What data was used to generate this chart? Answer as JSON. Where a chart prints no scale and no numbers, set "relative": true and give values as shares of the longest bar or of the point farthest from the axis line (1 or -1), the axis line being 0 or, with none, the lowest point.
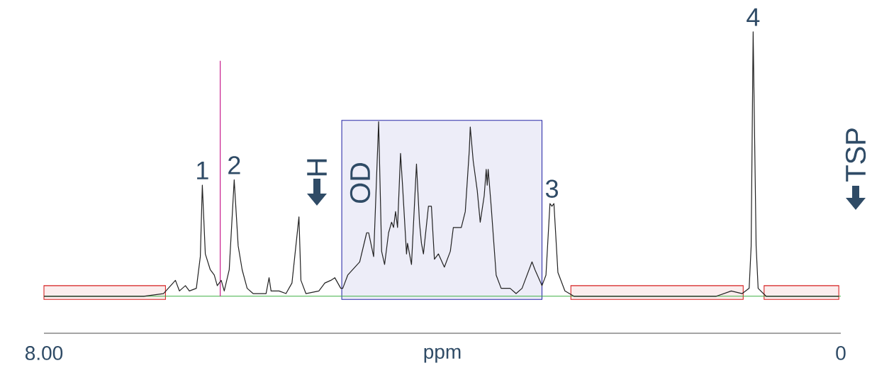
{
  "chart_data": {
    "type": "line",
    "relative": true,
    "xlabel": "ppm",
    "color": "#222222",
    "marker": "none",
    "xlim": [
      8,
      0
    ],
    "xticks": [
      {
        "value": 8,
        "label": "8.00"
      },
      0
    ],
    "x": [
      8.0,
      7.0,
      6.8,
      6.68,
      6.64,
      6.58,
      6.54,
      6.47,
      6.43,
      6.41,
      6.38,
      6.33,
      6.29,
      6.26,
      6.22,
      6.19,
      6.14,
      6.09,
      6.05,
      6.01,
      5.96,
      5.9,
      5.77,
      5.74,
      5.72,
      5.64,
      5.57,
      5.51,
      5.44,
      5.42,
      5.37,
      5.24,
      5.18,
      5.12,
      5.08,
      5.02,
      5.0,
      4.95,
      4.83,
      4.76,
      4.74,
      4.69,
      4.64,
      4.61,
      4.58,
      4.54,
      4.51,
      4.49,
      4.47,
      4.45,
      4.42,
      4.4,
      4.36,
      4.35,
      4.31,
      4.26,
      4.23,
      4.21,
      4.19,
      4.14,
      4.11,
      4.08,
      4.04,
      3.98,
      3.92,
      3.89,
      3.81,
      3.77,
      3.73,
      3.72,
      3.69,
      3.65,
      3.62,
      3.58,
      3.56,
      3.55,
      3.54,
      3.51,
      3.46,
      3.41,
      3.32,
      3.26,
      3.2,
      3.1,
      3.07,
      3.0,
      2.96,
      2.92,
      2.9,
      2.88,
      2.84,
      2.77,
      2.68,
      1.25,
      1.1,
      0.99,
      0.92,
      0.9,
      0.88,
      0.85,
      0.83,
      0.75,
      0.02
    ],
    "values": [
      0.0,
      0.0,
      0.01,
      0.06,
      0.02,
      0.04,
      0.02,
      0.03,
      0.15,
      0.42,
      0.16,
      0.1,
      0.08,
      0.04,
      0.06,
      0.02,
      0.1,
      0.44,
      0.19,
      0.1,
      0.03,
      0.01,
      0.01,
      0.07,
      0.02,
      0.02,
      0.01,
      0.05,
      0.3,
      0.06,
      0.01,
      0.02,
      0.05,
      0.06,
      0.07,
      0.03,
      0.03,
      0.08,
      0.13,
      0.24,
      0.24,
      0.15,
      0.66,
      0.17,
      0.12,
      0.24,
      0.28,
      0.26,
      0.32,
      0.26,
      0.54,
      0.42,
      0.16,
      0.2,
      0.12,
      0.5,
      0.28,
      0.2,
      0.16,
      0.34,
      0.34,
      0.14,
      0.16,
      0.11,
      0.17,
      0.26,
      0.26,
      0.32,
      0.55,
      0.64,
      0.51,
      0.4,
      0.28,
      0.38,
      0.48,
      0.42,
      0.48,
      0.34,
      0.08,
      0.03,
      0.03,
      0.01,
      0.03,
      0.13,
      0.1,
      0.04,
      0.08,
      0.35,
      0.34,
      0.35,
      0.09,
      0.02,
      0.0,
      0.0,
      0.02,
      0.01,
      0.03,
      0.19,
      1,
      0.19,
      0.03,
      0.0,
      0.0
    ],
    "ref_lines": [
      {
        "axis": "y",
        "value": 0,
        "color": "#3cb043"
      },
      {
        "axis": "x",
        "value": 6.23,
        "color": "#c0007f"
      }
    ],
    "bands": [
      {
        "axis": "x",
        "from": 8.0,
        "to": 6.78,
        "color": "#d62020"
      },
      {
        "axis": "x",
        "from": 5.01,
        "to": 3.0,
        "color": "#2a2aa8"
      },
      {
        "axis": "x",
        "from": 2.71,
        "to": 0.98,
        "color": "#d62020"
      },
      {
        "axis": "x",
        "from": 0.77,
        "to": 0.02,
        "color": "#d62020"
      }
    ],
    "annotations": [
      {
        "text": "1",
        "x": 6.41,
        "y": 0.42
      },
      {
        "text": "2",
        "x": 6.09,
        "y": 0.44
      },
      {
        "text": "3",
        "x": 2.9,
        "y": 0.35
      },
      {
        "text": "4",
        "x": 0.88,
        "y": 1
      },
      "H",
      "OD",
      "TSP"
    ]
  }
}
